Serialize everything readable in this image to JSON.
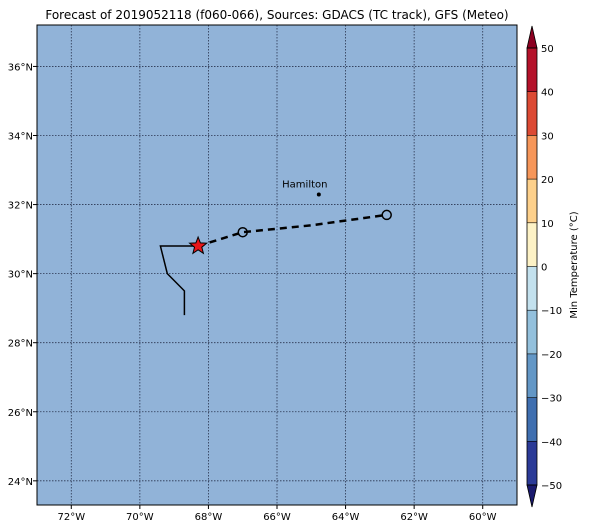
{
  "title": "Forecast of 2019052118 (f060-066), Sources: GDACS (TC track), GFS (Meteo)",
  "map": {
    "lon_range": [
      -73,
      -59
    ],
    "lat_range": [
      23.3,
      37.2
    ],
    "background_color": "#91b3d8",
    "grid": true,
    "lon_ticks": [
      -72,
      -70,
      -68,
      -66,
      -64,
      -62,
      -60
    ],
    "lat_ticks": [
      24,
      26,
      28,
      30,
      32,
      34,
      36
    ],
    "lon_tick_labels": [
      "72°W",
      "70°W",
      "68°W",
      "66°W",
      "64°W",
      "62°W",
      "60°W"
    ],
    "lat_tick_labels": [
      "24°N",
      "26°N",
      "28°N",
      "30°N",
      "32°N",
      "34°N",
      "36°N"
    ]
  },
  "places": [
    {
      "name": "Hamilton",
      "lon": -64.78,
      "lat": 32.29
    }
  ],
  "tc_track": {
    "past": [
      {
        "lon": -68.7,
        "lat": 28.8
      },
      {
        "lon": -68.7,
        "lat": 29.5
      },
      {
        "lon": -69.2,
        "lat": 30.0
      },
      {
        "lon": -69.4,
        "lat": 30.8
      },
      {
        "lon": -68.3,
        "lat": 30.8
      }
    ],
    "current": {
      "lon": -68.3,
      "lat": 30.8
    },
    "forecast": [
      {
        "lon": -68.3,
        "lat": 30.8
      },
      {
        "lon": -67.0,
        "lat": 31.2
      },
      {
        "lon": -65.0,
        "lat": 31.4
      },
      {
        "lon": -62.8,
        "lat": 31.7
      }
    ],
    "forecast_points": [
      {
        "lon": -67.0,
        "lat": 31.2
      },
      {
        "lon": -62.8,
        "lat": 31.7
      }
    ]
  },
  "colorbar": {
    "label": "Min Temperature (°C)",
    "min": -55,
    "max": 55,
    "levels": [
      -50,
      -40,
      -30,
      -20,
      -10,
      0,
      10,
      20,
      30,
      40,
      50
    ],
    "tick_labels": [
      "−50",
      "−40",
      "−30",
      "−20",
      "−10",
      "0",
      "10",
      "20",
      "30",
      "40",
      "50"
    ],
    "colors": [
      "#2b3a97",
      "#3f6fb0",
      "#6397c6",
      "#93c0dc",
      "#c3e1ee",
      "#ecf7f7",
      "#fdf2c6",
      "#fdd08b",
      "#f69659",
      "#dc4a34",
      "#b4122a"
    ],
    "under_color": "#1a1a6e",
    "over_color": "#8b0021"
  }
}
